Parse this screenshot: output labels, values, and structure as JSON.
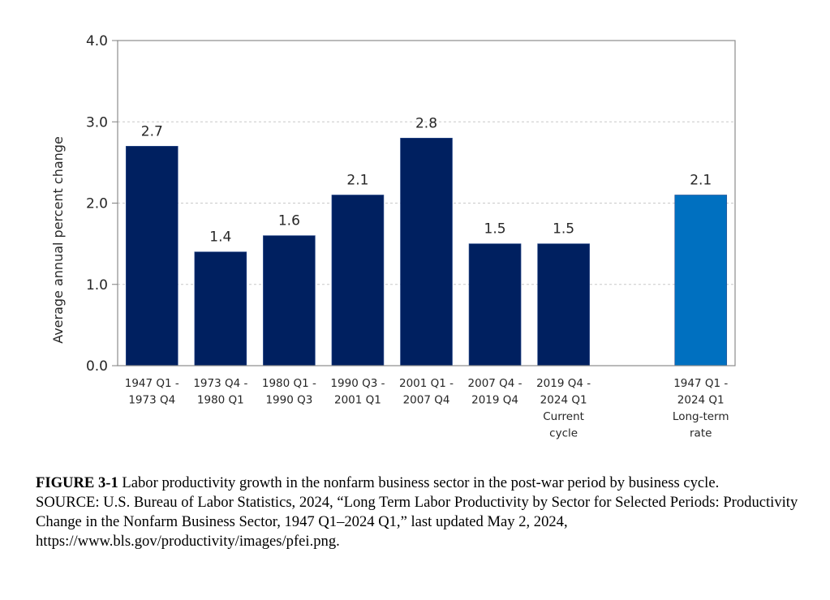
{
  "chart_data": {
    "type": "bar",
    "title": "",
    "xlabel": "",
    "ylabel": "Average annual percent change",
    "ylim": [
      0,
      4
    ],
    "yticks": [
      "0.0",
      "1.0",
      "2.0",
      "3.0",
      "4.0"
    ],
    "grid": "horizontal dashed",
    "legend": "none",
    "categories": [
      [
        "1947 Q1 -",
        "1973 Q4"
      ],
      [
        "1973 Q4 -",
        "1980 Q1"
      ],
      [
        "1980 Q1 -",
        "1990 Q3"
      ],
      [
        "1990 Q3 -",
        "2001 Q1"
      ],
      [
        "2001 Q1 -",
        "2007 Q4"
      ],
      [
        "2007 Q4 -",
        "2019 Q4"
      ],
      [
        "2019 Q4 -",
        "2024 Q1",
        "Current",
        "cycle"
      ],
      [],
      [
        "1947 Q1 -",
        "2024 Q1",
        "Long-term",
        "rate"
      ]
    ],
    "values": [
      2.7,
      1.4,
      1.6,
      2.1,
      2.8,
      1.5,
      1.5,
      null,
      2.1
    ],
    "data_labels": [
      "2.7",
      "1.4",
      "1.6",
      "2.1",
      "2.8",
      "1.5",
      "1.5",
      null,
      "2.1"
    ],
    "colors": [
      "#002060",
      "#002060",
      "#002060",
      "#002060",
      "#002060",
      "#002060",
      "#002060",
      null,
      "#0070C0"
    ]
  },
  "caption": {
    "figure_label": "FIGURE 3-1",
    "figure_text": " Labor productivity growth in the nonfarm business sector in the post-war period by business cycle.",
    "source": "SOURCE: U.S. Bureau of Labor Statistics, 2024, “Long Term Labor Productivity by Sector for Selected Periods: Productivity Change in the Nonfarm Business Sector, 1947 Q1–2024 Q1,” last updated May 2, 2024, https://www.bls.gov/productivity/images/pfei.png."
  }
}
